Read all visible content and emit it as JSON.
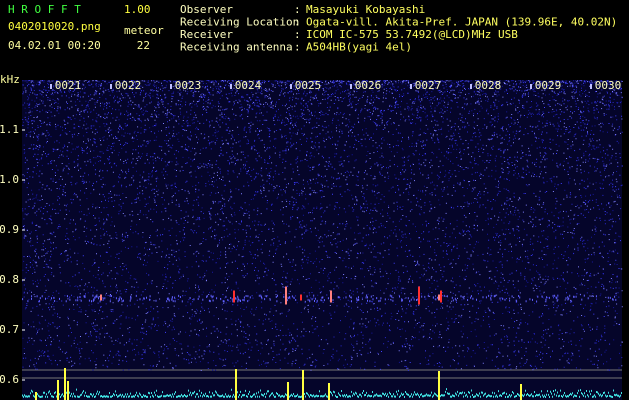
{
  "header": {
    "app_name": "H R O F F T",
    "version": "1.00",
    "filename": "0402010020.png",
    "datetime": "04.02.01 00:20",
    "meteor_label": "meteor",
    "meteor_count": 22
  },
  "station": {
    "separator": ":",
    "rows": [
      {
        "label": "Observer",
        "value": "Masayuki Kobayashi"
      },
      {
        "label": "Receiving Location",
        "value": "Ogata-vill. Akita-Pref. JAPAN (139.96E, 40.02N)"
      },
      {
        "label": "Receiver",
        "value": "ICOM IC-575 53.7492(@LCD)MHz USB"
      },
      {
        "label": "Receiving antenna",
        "value": "A504HB(yagi 4el)"
      }
    ]
  },
  "chart_data": {
    "type": "spectrogram",
    "y_label": "kHz",
    "ylim": [
      0.56,
      1.2
    ],
    "yticks": [
      0.6,
      0.7,
      0.8,
      0.9,
      {
        "value": 1,
        "label": "1.0"
      },
      1.1
    ],
    "categories": [
      "0021",
      "0022",
      "0023",
      "0024",
      "0025",
      "0026",
      "0027",
      "0028",
      "0029",
      "0030"
    ]
  }
}
